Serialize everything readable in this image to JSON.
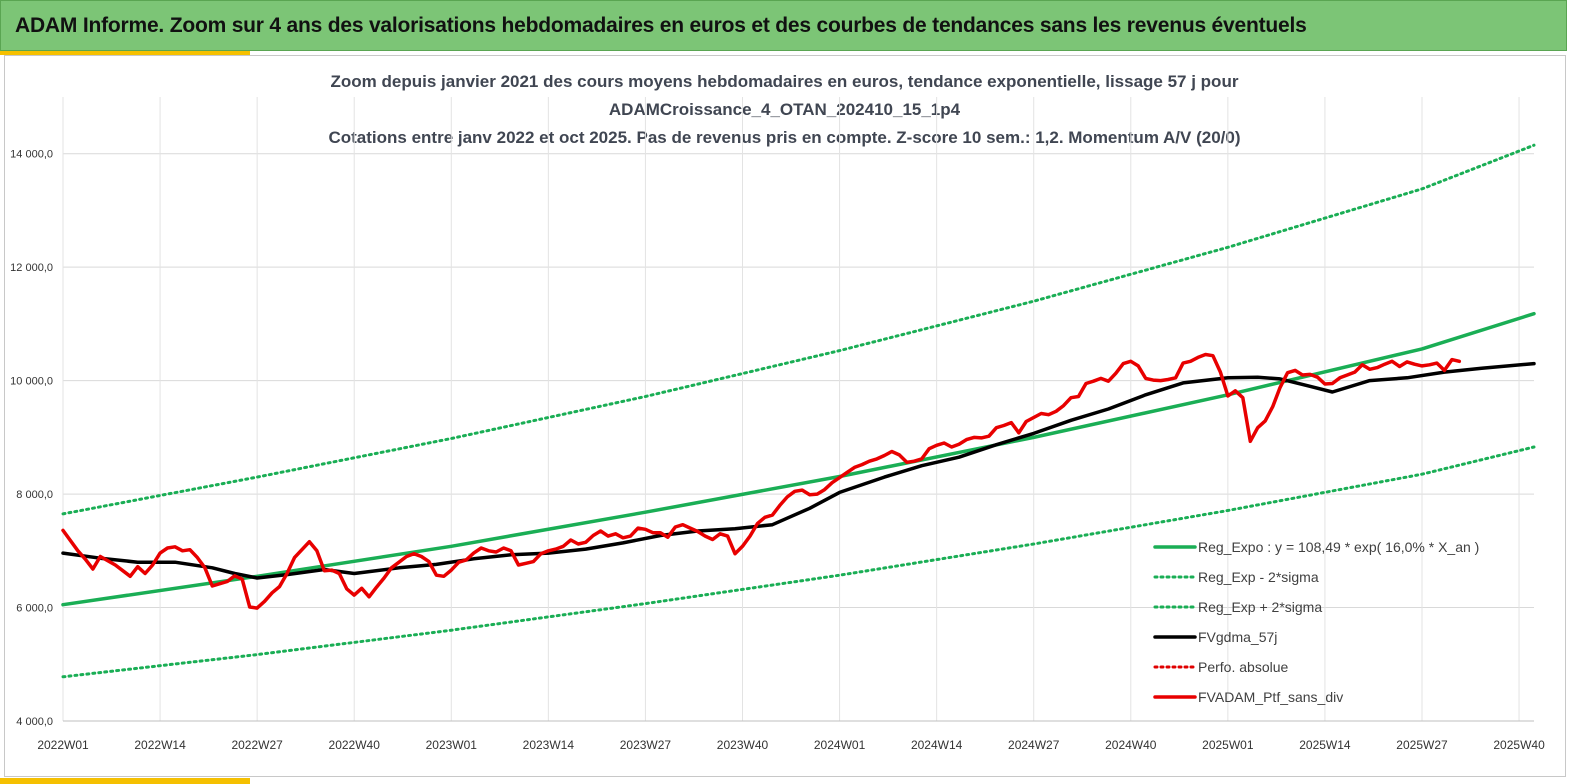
{
  "header": {
    "title": "ADAM Informe. Zoom sur 4 ans des valorisations hebdomadaires en euros et des courbes de tendances sans les revenus éventuels"
  },
  "colors": {
    "banner": "#7cc576",
    "accent": "#f5c000",
    "reg_expo": "#1aae55",
    "sigma_lines": "#1aae55",
    "mma": "#000000",
    "perfo": "#e00000",
    "portfolio": "#e80000"
  },
  "chart_data": {
    "type": "line",
    "title_lines": [
      "Zoom depuis janvier 2021 des cours moyens hebdomadaires  en euros, tendance exponentielle, lissage 57 j pour",
      "ADAMCroissance_4_OTAN_202410_15_1p4",
      "Cotations  entre janv 2022 et oct 2025. Pas de revenus pris en compte. Z-score 10 sem.: 1,2. Momentum A/V (20/0)"
    ],
    "xlabel": "",
    "ylabel": "",
    "ylim": [
      4000,
      15000
    ],
    "yticks": [
      "4 000,0",
      "6 000,0",
      "8 000,0",
      "10 000,0",
      "12 000,0",
      "14 000,0"
    ],
    "ytick_values": [
      4000,
      6000,
      8000,
      10000,
      12000,
      14000
    ],
    "x_week_range": [
      0,
      197
    ],
    "xtick_labels": [
      "2022W01",
      "2022W14",
      "2022W27",
      "2022W40",
      "2023W01",
      "2023W14",
      "2023W27",
      "2023W40",
      "2024W01",
      "2024W14",
      "2024W27",
      "2024W40",
      "2025W01",
      "2025W14",
      "2025W27",
      "2025W40"
    ],
    "xtick_weeks": [
      0,
      13,
      26,
      39,
      52,
      65,
      78,
      91,
      104,
      117,
      130,
      143,
      156,
      169,
      182,
      195
    ],
    "grid": true,
    "legend_position": "bottom-right",
    "series": [
      {
        "name": "Reg_Expo : y = 108,49 * exp( 16,0% *  X_an )",
        "style": "solid",
        "color": "#1aae55",
        "points": [
          [
            0,
            6050
          ],
          [
            26,
            6550
          ],
          [
            52,
            7080
          ],
          [
            78,
            7680
          ],
          [
            104,
            8310
          ],
          [
            130,
            9000
          ],
          [
            156,
            9750
          ],
          [
            182,
            10560
          ],
          [
            197,
            11180
          ]
        ]
      },
      {
        "name": "Reg_Exp - 2*sigma",
        "style": "dotted",
        "color": "#1aae55",
        "points": [
          [
            0,
            4780
          ],
          [
            26,
            5170
          ],
          [
            52,
            5600
          ],
          [
            78,
            6070
          ],
          [
            104,
            6570
          ],
          [
            130,
            7120
          ],
          [
            156,
            7710
          ],
          [
            182,
            8350
          ],
          [
            197,
            8830
          ]
        ]
      },
      {
        "name": "Reg_Exp + 2*sigma",
        "style": "dotted",
        "color": "#1aae55",
        "points": [
          [
            0,
            7650
          ],
          [
            26,
            8300
          ],
          [
            52,
            8980
          ],
          [
            78,
            9720
          ],
          [
            104,
            10530
          ],
          [
            130,
            11400
          ],
          [
            156,
            12350
          ],
          [
            182,
            13380
          ],
          [
            197,
            14150
          ]
        ]
      },
      {
        "name": "FVgdma_57j",
        "style": "solid",
        "color": "#000000",
        "points": [
          [
            0,
            6960
          ],
          [
            5,
            6870
          ],
          [
            10,
            6800
          ],
          [
            15,
            6800
          ],
          [
            20,
            6700
          ],
          [
            23,
            6600
          ],
          [
            26,
            6520
          ],
          [
            30,
            6580
          ],
          [
            35,
            6670
          ],
          [
            39,
            6600
          ],
          [
            45,
            6700
          ],
          [
            50,
            6760
          ],
          [
            55,
            6860
          ],
          [
            60,
            6930
          ],
          [
            65,
            6960
          ],
          [
            70,
            7030
          ],
          [
            75,
            7140
          ],
          [
            80,
            7270
          ],
          [
            85,
            7350
          ],
          [
            90,
            7390
          ],
          [
            95,
            7460
          ],
          [
            100,
            7750
          ],
          [
            104,
            8030
          ],
          [
            110,
            8300
          ],
          [
            115,
            8500
          ],
          [
            120,
            8650
          ],
          [
            125,
            8870
          ],
          [
            130,
            9070
          ],
          [
            135,
            9300
          ],
          [
            140,
            9500
          ],
          [
            145,
            9750
          ],
          [
            150,
            9960
          ],
          [
            156,
            10050
          ],
          [
            160,
            10060
          ],
          [
            163,
            10030
          ],
          [
            167,
            9900
          ],
          [
            170,
            9800
          ],
          [
            175,
            10000
          ],
          [
            180,
            10050
          ],
          [
            185,
            10150
          ],
          [
            190,
            10220
          ],
          [
            197,
            10300
          ]
        ]
      },
      {
        "name": "Perfo. absolue",
        "style": "dotted",
        "color": "#e00000",
        "points": []
      },
      {
        "name": "FVADAM_Ptf_sans_div",
        "style": "solid",
        "color": "#e80000",
        "points": [
          [
            0,
            7360
          ],
          [
            2,
            7000
          ],
          [
            3,
            6850
          ],
          [
            4,
            6680
          ],
          [
            5,
            6900
          ],
          [
            7,
            6750
          ],
          [
            9,
            6550
          ],
          [
            10,
            6720
          ],
          [
            11,
            6600
          ],
          [
            12,
            6750
          ],
          [
            13,
            6960
          ],
          [
            14,
            7050
          ],
          [
            15,
            7070
          ],
          [
            16,
            7000
          ],
          [
            17,
            7020
          ],
          [
            18,
            6880
          ],
          [
            19,
            6700
          ],
          [
            20,
            6380
          ],
          [
            21,
            6420
          ],
          [
            22,
            6460
          ],
          [
            23,
            6560
          ],
          [
            24,
            6500
          ],
          [
            25,
            6010
          ],
          [
            26,
            5990
          ],
          [
            27,
            6110
          ],
          [
            28,
            6260
          ],
          [
            29,
            6370
          ],
          [
            30,
            6600
          ],
          [
            31,
            6880
          ],
          [
            32,
            7020
          ],
          [
            33,
            7160
          ],
          [
            34,
            7000
          ],
          [
            35,
            6650
          ],
          [
            36,
            6660
          ],
          [
            37,
            6600
          ],
          [
            38,
            6330
          ],
          [
            39,
            6220
          ],
          [
            40,
            6340
          ],
          [
            41,
            6190
          ],
          [
            42,
            6360
          ],
          [
            43,
            6520
          ],
          [
            44,
            6700
          ],
          [
            45,
            6800
          ],
          [
            46,
            6900
          ],
          [
            47,
            6950
          ],
          [
            48,
            6900
          ],
          [
            49,
            6810
          ],
          [
            50,
            6570
          ],
          [
            51,
            6550
          ],
          [
            52,
            6660
          ],
          [
            53,
            6800
          ],
          [
            54,
            6840
          ],
          [
            55,
            6960
          ],
          [
            56,
            7050
          ],
          [
            57,
            7000
          ],
          [
            58,
            6980
          ],
          [
            59,
            7050
          ],
          [
            60,
            7000
          ],
          [
            61,
            6750
          ],
          [
            62,
            6780
          ],
          [
            63,
            6810
          ],
          [
            64,
            6950
          ],
          [
            65,
            7000
          ],
          [
            66,
            7030
          ],
          [
            67,
            7080
          ],
          [
            68,
            7190
          ],
          [
            69,
            7120
          ],
          [
            70,
            7150
          ],
          [
            71,
            7270
          ],
          [
            72,
            7350
          ],
          [
            73,
            7260
          ],
          [
            74,
            7300
          ],
          [
            75,
            7230
          ],
          [
            76,
            7260
          ],
          [
            77,
            7400
          ],
          [
            78,
            7380
          ],
          [
            79,
            7320
          ],
          [
            80,
            7320
          ],
          [
            81,
            7240
          ],
          [
            82,
            7420
          ],
          [
            83,
            7460
          ],
          [
            84,
            7400
          ],
          [
            85,
            7340
          ],
          [
            86,
            7260
          ],
          [
            87,
            7200
          ],
          [
            88,
            7300
          ],
          [
            89,
            7260
          ],
          [
            90,
            6950
          ],
          [
            91,
            7080
          ],
          [
            92,
            7260
          ],
          [
            93,
            7480
          ],
          [
            94,
            7590
          ],
          [
            95,
            7630
          ],
          [
            96,
            7800
          ],
          [
            97,
            7950
          ],
          [
            98,
            8050
          ],
          [
            99,
            8070
          ],
          [
            100,
            7990
          ],
          [
            101,
            8000
          ],
          [
            102,
            8080
          ],
          [
            103,
            8200
          ],
          [
            104,
            8290
          ],
          [
            105,
            8380
          ],
          [
            106,
            8470
          ],
          [
            107,
            8520
          ],
          [
            108,
            8580
          ],
          [
            109,
            8620
          ],
          [
            110,
            8680
          ],
          [
            111,
            8750
          ],
          [
            112,
            8690
          ],
          [
            113,
            8560
          ],
          [
            114,
            8580
          ],
          [
            115,
            8620
          ],
          [
            116,
            8800
          ],
          [
            117,
            8860
          ],
          [
            118,
            8900
          ],
          [
            119,
            8830
          ],
          [
            120,
            8880
          ],
          [
            121,
            8960
          ],
          [
            122,
            9000
          ],
          [
            123,
            8990
          ],
          [
            124,
            9020
          ],
          [
            125,
            9170
          ],
          [
            126,
            9210
          ],
          [
            127,
            9260
          ],
          [
            128,
            9080
          ],
          [
            129,
            9280
          ],
          [
            130,
            9350
          ],
          [
            131,
            9420
          ],
          [
            132,
            9400
          ],
          [
            133,
            9460
          ],
          [
            134,
            9560
          ],
          [
            135,
            9700
          ],
          [
            136,
            9720
          ],
          [
            137,
            9950
          ],
          [
            138,
            9990
          ],
          [
            139,
            10040
          ],
          [
            140,
            9990
          ],
          [
            141,
            10130
          ],
          [
            142,
            10300
          ],
          [
            143,
            10340
          ],
          [
            144,
            10260
          ],
          [
            145,
            10040
          ],
          [
            146,
            10010
          ],
          [
            147,
            10000
          ],
          [
            148,
            10020
          ],
          [
            149,
            10050
          ],
          [
            150,
            10310
          ],
          [
            151,
            10340
          ],
          [
            152,
            10410
          ],
          [
            153,
            10460
          ],
          [
            154,
            10440
          ],
          [
            155,
            10150
          ],
          [
            156,
            9730
          ],
          [
            157,
            9820
          ],
          [
            158,
            9700
          ],
          [
            159,
            8930
          ],
          [
            160,
            9170
          ],
          [
            161,
            9290
          ],
          [
            162,
            9540
          ],
          [
            163,
            9880
          ],
          [
            164,
            10140
          ],
          [
            165,
            10180
          ],
          [
            166,
            10100
          ],
          [
            167,
            10110
          ],
          [
            168,
            10060
          ],
          [
            169,
            9940
          ],
          [
            170,
            9950
          ],
          [
            171,
            10050
          ],
          [
            172,
            10100
          ],
          [
            173,
            10150
          ],
          [
            174,
            10280
          ],
          [
            175,
            10200
          ],
          [
            176,
            10230
          ],
          [
            177,
            10290
          ],
          [
            178,
            10340
          ],
          [
            179,
            10250
          ],
          [
            180,
            10330
          ],
          [
            181,
            10290
          ],
          [
            182,
            10260
          ],
          [
            183,
            10280
          ],
          [
            184,
            10310
          ],
          [
            185,
            10180
          ],
          [
            186,
            10370
          ],
          [
            187,
            10340
          ]
        ]
      }
    ]
  }
}
